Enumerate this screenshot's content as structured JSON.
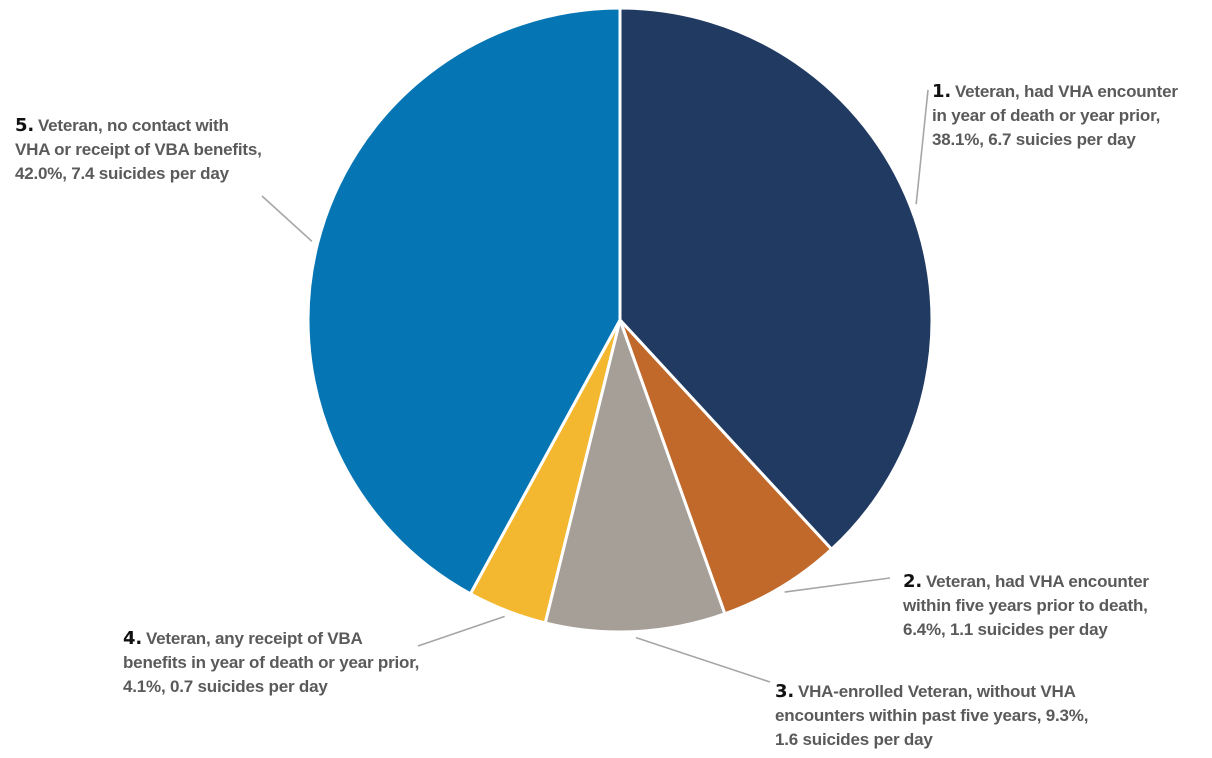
{
  "chart_data": {
    "type": "pie",
    "slices": [
      {
        "number": "1.",
        "label": "Veteran, had VHA encounter in year of death or year prior",
        "value": 38.1,
        "per_day": 6.7,
        "color": "#203a62",
        "lines": [
          "Veteran, had VHA encounter",
          "in year of death or year prior,",
          "38.1%, 6.7 suicies per day"
        ]
      },
      {
        "number": "2.",
        "label": "Veteran, had VHA encounter within five years prior to death",
        "value": 6.4,
        "per_day": 1.1,
        "color": "#c0692a",
        "lines": [
          "Veteran, had VHA encounter",
          "within five years prior to death,",
          "6.4%, 1.1 suicides per day"
        ]
      },
      {
        "number": "3.",
        "label": "VHA-enrolled Veteran, without VHA encounters within past five years",
        "value": 9.3,
        "per_day": 1.6,
        "color": "#a69f98",
        "lines": [
          "VHA-enrolled Veteran, without VHA",
          "encounters within past five years, 9.3%,",
          "1.6 suicides per day"
        ]
      },
      {
        "number": "4.",
        "label": "Veteran, any receipt of VBA benefits in year of death or year prior",
        "value": 4.1,
        "per_day": 0.7,
        "color": "#f3b82f",
        "lines": [
          "Veteran, any receipt of VBA",
          "benefits in year of death or year prior,",
          "4.1%, 0.7 suicides per day"
        ]
      },
      {
        "number": "5.",
        "label": "Veteran, no contact with VHA or receipt of VBA benefits",
        "value": 42.0,
        "per_day": 7.4,
        "color": "#0575b4",
        "lines": [
          "Veteran, no contact with",
          "VHA or receipt of VBA benefits,",
          "42.0%, 7.4 suicides per day"
        ]
      }
    ],
    "start_angle": "12 o'clock",
    "direction": "clockwise",
    "legend": "none"
  }
}
